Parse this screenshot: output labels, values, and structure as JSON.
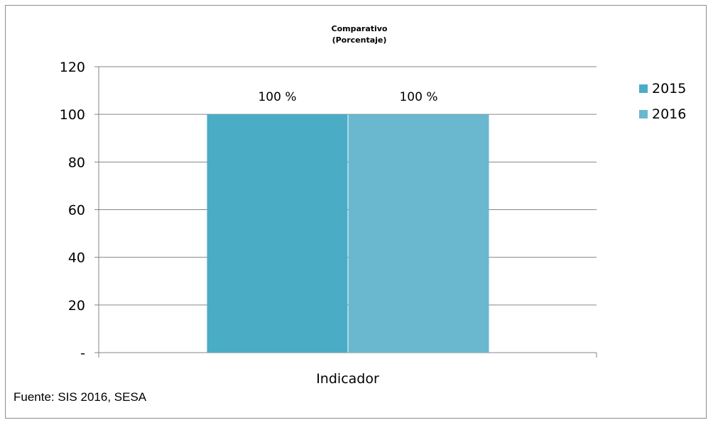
{
  "chart_data": {
    "type": "bar",
    "title": "Comparativo",
    "subtitle": "(Porcentaje)",
    "categories": [
      "Indicador"
    ],
    "series": [
      {
        "name": "2015",
        "values": [
          100
        ],
        "color": "#4bacc6",
        "label": "100 %"
      },
      {
        "name": "2016",
        "values": [
          100
        ],
        "color": "#69b8cf",
        "label": "100 %"
      }
    ],
    "ylim": [
      0,
      120
    ],
    "yticks": [
      0,
      20,
      40,
      60,
      80,
      100,
      120
    ],
    "ytick_labels": [
      "-",
      "20",
      "40",
      "60",
      "80",
      "100",
      "120"
    ],
    "grid": true,
    "legend": "right"
  },
  "source": "Fuente: SIS 2016, SESA"
}
